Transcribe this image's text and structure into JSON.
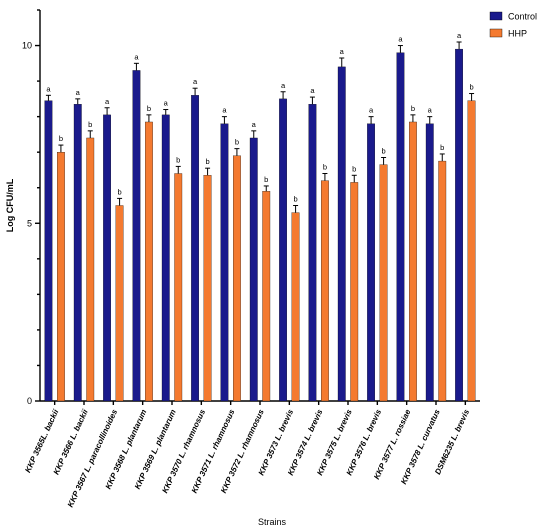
{
  "chart_data": {
    "type": "bar",
    "xlabel": "Strains",
    "ylabel": "Log CFU/mL",
    "ylim": [
      0,
      11
    ],
    "yticks": [
      0,
      5,
      10
    ],
    "legend_position": "top-right",
    "categories": [
      "KKP 3565L. backii",
      "KKP 3566 L. backii",
      "KKP 3567 L. paracollinoides",
      "KKP 3568 L. plantarum",
      "KKP 3569 L. plantarum",
      "KKP 3570 L. rhamnosus",
      "KKP 3571 L. rhamnosus",
      "KKP 3572 L. rhamnosus",
      "KKP 3573 L. brevis",
      "KKP 3574 L. brevis",
      "KKP 3575 L. brevis",
      "KKP 3576 L. brevis",
      "KKP 3577 L. rossiae",
      "KKP 3578 L. curvatus",
      "DSM6235 L. brevis"
    ],
    "series": [
      {
        "name": "Control",
        "color": "#1a1a8c",
        "values": [
          8.45,
          8.35,
          8.05,
          9.3,
          8.05,
          8.6,
          7.8,
          7.4,
          8.5,
          8.35,
          9.4,
          7.8,
          9.8,
          7.8,
          9.9
        ],
        "errors": [
          0.15,
          0.15,
          0.2,
          0.2,
          0.15,
          0.2,
          0.2,
          0.2,
          0.2,
          0.2,
          0.25,
          0.2,
          0.2,
          0.2,
          0.2
        ],
        "labels": [
          "a",
          "a",
          "a",
          "a",
          "a",
          "a",
          "a",
          "a",
          "a",
          "a",
          "a",
          "a",
          "a",
          "a",
          "a"
        ]
      },
      {
        "name": "HHP",
        "color": "#f47a30",
        "values": [
          7.0,
          7.4,
          5.5,
          7.85,
          6.4,
          6.35,
          6.9,
          5.9,
          5.3,
          6.2,
          6.15,
          6.65,
          7.85,
          6.75,
          8.45
        ],
        "errors": [
          0.2,
          0.2,
          0.2,
          0.2,
          0.2,
          0.2,
          0.2,
          0.15,
          0.2,
          0.2,
          0.2,
          0.2,
          0.2,
          0.2,
          0.2
        ],
        "labels": [
          "b",
          "b",
          "b",
          "b",
          "b",
          "b",
          "b",
          "b",
          "b",
          "b",
          "b",
          "b",
          "b",
          "b",
          "b"
        ]
      }
    ]
  }
}
